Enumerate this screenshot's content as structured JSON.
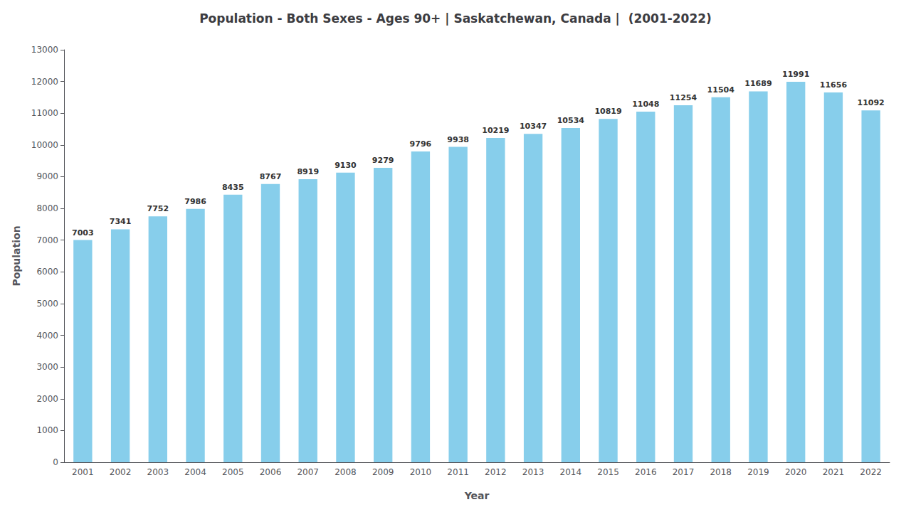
{
  "chart_data": {
    "type": "bar",
    "title": "Population - Both Sexes - Ages 90+ | Saskatchewan, Canada |  (2001-2022)",
    "x_label": "Year",
    "y_label": "Population",
    "categories": [
      "2001",
      "2002",
      "2003",
      "2004",
      "2005",
      "2006",
      "2007",
      "2008",
      "2009",
      "2010",
      "2011",
      "2012",
      "2013",
      "2014",
      "2015",
      "2016",
      "2017",
      "2018",
      "2019",
      "2020",
      "2021",
      "2022"
    ],
    "values": [
      7003,
      7341,
      7752,
      7986,
      8435,
      8767,
      8919,
      9130,
      9279,
      9796,
      9938,
      10219,
      10347,
      10534,
      10819,
      11048,
      11254,
      11504,
      11689,
      11991,
      11656,
      11092
    ],
    "color": "#87CEEB",
    "ylim": [
      0,
      13000
    ],
    "yticks": [
      0,
      1000,
      2000,
      3000,
      4000,
      5000,
      6000,
      7000,
      8000,
      9000,
      10000,
      11000,
      12000,
      13000
    ],
    "grid": false,
    "data_labels": true
  }
}
